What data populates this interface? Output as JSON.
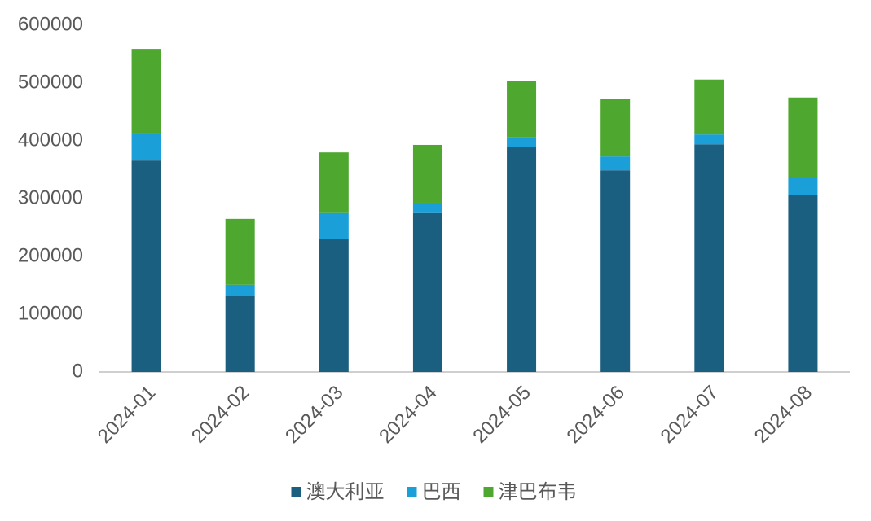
{
  "chart_data": {
    "type": "stacked_bar",
    "categories": [
      "2024-01",
      "2024-02",
      "2024-03",
      "2024-04",
      "2024-05",
      "2024-06",
      "2024-07",
      "2024-08"
    ],
    "series": [
      {
        "name": "澳大利亚",
        "color": "#1a5e80",
        "values": [
          366000,
          131000,
          230000,
          275000,
          390000,
          349000,
          394000,
          306000
        ]
      },
      {
        "name": "巴西",
        "color": "#1a9fd8",
        "values": [
          48000,
          20000,
          45000,
          18000,
          16000,
          24000,
          17000,
          31000
        ]
      },
      {
        "name": "津巴布韦",
        "color": "#4ea72e",
        "values": [
          145000,
          114000,
          105000,
          100000,
          98000,
          100000,
          95000,
          138000
        ]
      }
    ],
    "ylim": [
      0,
      600000
    ],
    "yticks": [
      0,
      100000,
      200000,
      300000,
      400000,
      500000,
      600000
    ],
    "legend": "bottom"
  }
}
